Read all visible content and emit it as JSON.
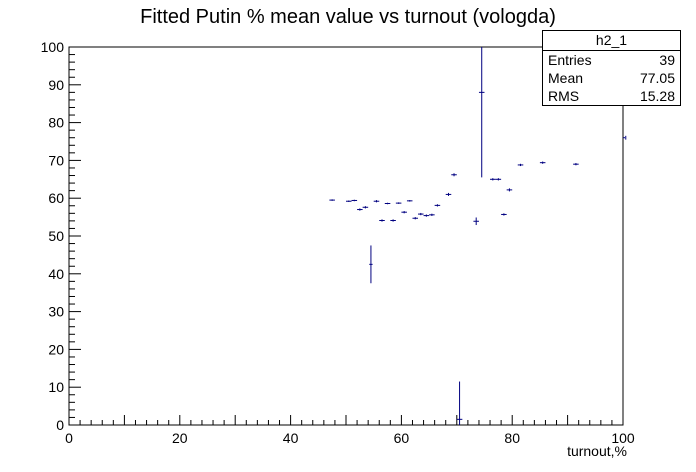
{
  "chart_data": {
    "type": "scatter",
    "title": "Fitted Putin % mean value vs turnout (vologda)",
    "xlabel": "turnout,%",
    "ylabel": "",
    "xlim": [
      0,
      100
    ],
    "ylim": [
      0,
      100
    ],
    "x_ticks": [
      0,
      20,
      40,
      60,
      80,
      100
    ],
    "y_ticks": [
      0,
      10,
      20,
      30,
      40,
      50,
      60,
      70,
      80,
      90,
      100
    ],
    "grid": false,
    "marker_color": "#000080",
    "points": [
      {
        "x": 47.5,
        "y": 59.5,
        "xerr": 0.5,
        "yerr": 0.2
      },
      {
        "x": 50.5,
        "y": 59.2,
        "xerr": 0.5,
        "yerr": 0.2
      },
      {
        "x": 51.5,
        "y": 59.4,
        "xerr": 0.5,
        "yerr": 0.2
      },
      {
        "x": 52.5,
        "y": 57.0,
        "xerr": 0.5,
        "yerr": 0.3
      },
      {
        "x": 53.5,
        "y": 57.6,
        "xerr": 0.5,
        "yerr": 0.3
      },
      {
        "x": 54.5,
        "y": 42.5,
        "xerr": 0.3,
        "yerr": 5.0
      },
      {
        "x": 55.5,
        "y": 59.2,
        "xerr": 0.5,
        "yerr": 0.3
      },
      {
        "x": 56.5,
        "y": 54.1,
        "xerr": 0.5,
        "yerr": 0.3
      },
      {
        "x": 57.5,
        "y": 58.6,
        "xerr": 0.5,
        "yerr": 0.2
      },
      {
        "x": 58.5,
        "y": 54.1,
        "xerr": 0.5,
        "yerr": 0.3
      },
      {
        "x": 59.5,
        "y": 58.7,
        "xerr": 0.5,
        "yerr": 0.2
      },
      {
        "x": 60.5,
        "y": 56.3,
        "xerr": 0.5,
        "yerr": 0.3
      },
      {
        "x": 61.5,
        "y": 59.3,
        "xerr": 0.5,
        "yerr": 0.2
      },
      {
        "x": 62.5,
        "y": 54.7,
        "xerr": 0.5,
        "yerr": 0.3
      },
      {
        "x": 63.5,
        "y": 55.8,
        "xerr": 0.5,
        "yerr": 0.3
      },
      {
        "x": 64.5,
        "y": 55.4,
        "xerr": 0.5,
        "yerr": 0.3
      },
      {
        "x": 65.5,
        "y": 55.6,
        "xerr": 0.5,
        "yerr": 0.3
      },
      {
        "x": 66.5,
        "y": 58.1,
        "xerr": 0.5,
        "yerr": 0.3
      },
      {
        "x": 68.5,
        "y": 61.0,
        "xerr": 0.5,
        "yerr": 0.4
      },
      {
        "x": 69.5,
        "y": 66.2,
        "xerr": 0.5,
        "yerr": 0.4
      },
      {
        "x": 70.5,
        "y": 1.5,
        "xerr": 0.5,
        "yerr": 10.0
      },
      {
        "x": 73.5,
        "y": 53.9,
        "xerr": 0.5,
        "yerr": 1.0
      },
      {
        "x": 74.5,
        "y": 88.0,
        "xerr": 0.5,
        "yerr": 22.5
      },
      {
        "x": 76.5,
        "y": 65.0,
        "xerr": 0.5,
        "yerr": 0.3
      },
      {
        "x": 77.5,
        "y": 65.0,
        "xerr": 0.5,
        "yerr": 0.3
      },
      {
        "x": 78.5,
        "y": 55.7,
        "xerr": 0.5,
        "yerr": 0.3
      },
      {
        "x": 79.5,
        "y": 62.2,
        "xerr": 0.5,
        "yerr": 0.4
      },
      {
        "x": 81.5,
        "y": 68.8,
        "xerr": 0.5,
        "yerr": 0.3
      },
      {
        "x": 85.5,
        "y": 69.4,
        "xerr": 0.5,
        "yerr": 0.3
      },
      {
        "x": 91.5,
        "y": 69.0,
        "xerr": 0.5,
        "yerr": 0.3
      },
      {
        "x": 100.5,
        "y": 76.0,
        "xerr": 0.5,
        "yerr": 0.5
      }
    ]
  },
  "stats": {
    "name": "h2_1",
    "entries_label": "Entries",
    "entries_value": "39",
    "mean_label": "Mean",
    "mean_value": "77.05",
    "rms_label": "RMS",
    "rms_value": "15.28"
  }
}
